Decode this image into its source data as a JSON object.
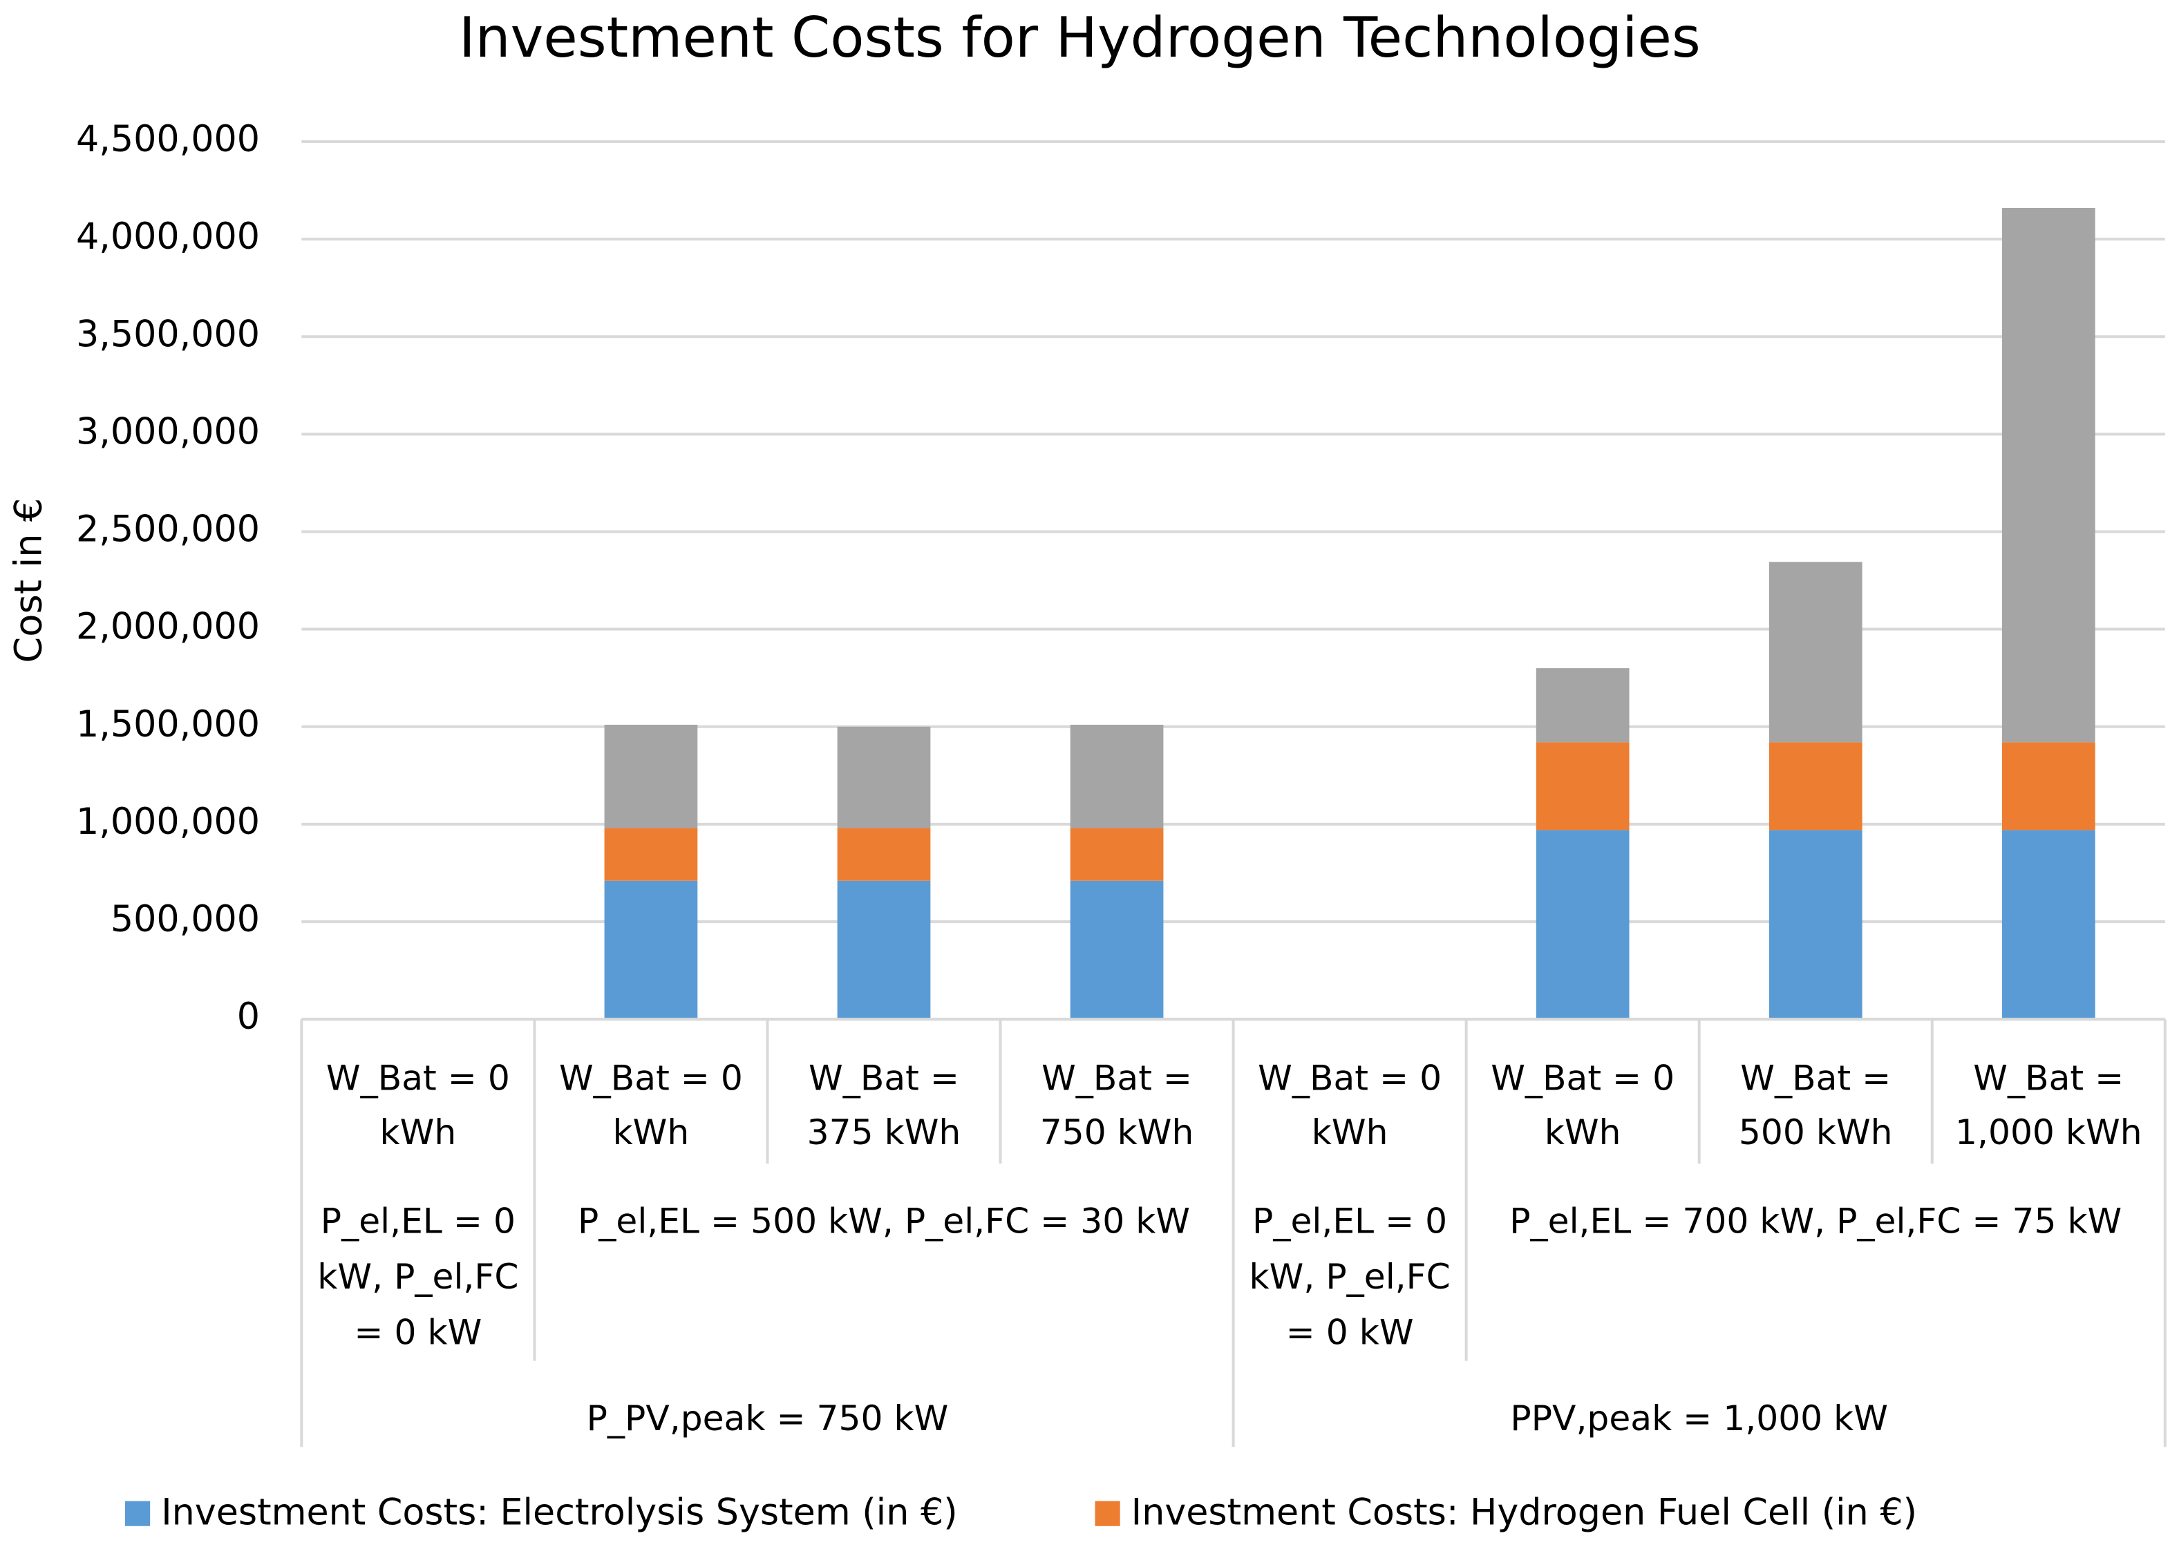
{
  "chart_data": {
    "type": "stacked_bar",
    "title": "Investment Costs for Hydrogen Technologies",
    "y_label": "Cost in €",
    "categories": [
      "W_Bat = 0 kWh",
      "W_Bat = 0 kWh",
      "W_Bat = 375 kWh",
      "W_Bat = 750 kWh",
      "W_Bat = 0 kWh",
      "W_Bat = 0 kWh",
      "W_Bat = 500 kWh",
      "W_Bat = 1,000 kWh"
    ],
    "category_groups": [
      [
        {
          "label": "P_el,EL = 0 kW, P_el,FC = 0 kW",
          "span": 1
        },
        {
          "label": "P_el,EL = 500 kW, P_el,FC = 30 kW",
          "span": 3
        },
        {
          "label": "P_el,EL = 0 kW, P_el,FC = 0 kW",
          "span": 1
        },
        {
          "label": "P_el,EL = 700 kW, P_el,FC = 75 kW",
          "span": 3
        }
      ],
      [
        {
          "label": "P_PV,peak = 750 kW",
          "span": 4
        },
        {
          "label": "PPV,peak = 1,000 kW",
          "span": 4
        }
      ]
    ],
    "series": [
      {
        "name": "Investment Costs: Electrolysis System (in €)",
        "color": "#5b9bd5",
        "values": [
          0,
          710000,
          710000,
          710000,
          0,
          970000,
          970000,
          970000
        ]
      },
      {
        "name": "Investment Costs: Hydrogen Fuel Cell (in €)",
        "color": "#ed7d31",
        "values": [
          0,
          270000,
          270000,
          270000,
          0,
          450000,
          450000,
          450000
        ]
      },
      {
        "color": "#a5a5a5",
        "values": [
          0,
          530000,
          520000,
          530000,
          0,
          380000,
          925000,
          2740000
        ]
      }
    ],
    "ylim": [
      0,
      4500000
    ],
    "yticks": [
      0,
      {
        "value": 500000,
        "label": "500,000"
      },
      {
        "value": 1000000,
        "label": "1,000,000"
      },
      {
        "value": 1500000,
        "label": "1,500,000"
      },
      {
        "value": 2000000,
        "label": "2,000,000"
      },
      {
        "value": 2500000,
        "label": "2,500,000"
      },
      {
        "value": 3000000,
        "label": "3,000,000"
      },
      {
        "value": 3500000,
        "label": "3,500,000"
      },
      {
        "value": 4000000,
        "label": "4,000,000"
      },
      {
        "value": 4500000,
        "label": "4,500,000"
      }
    ],
    "grid": true
  }
}
